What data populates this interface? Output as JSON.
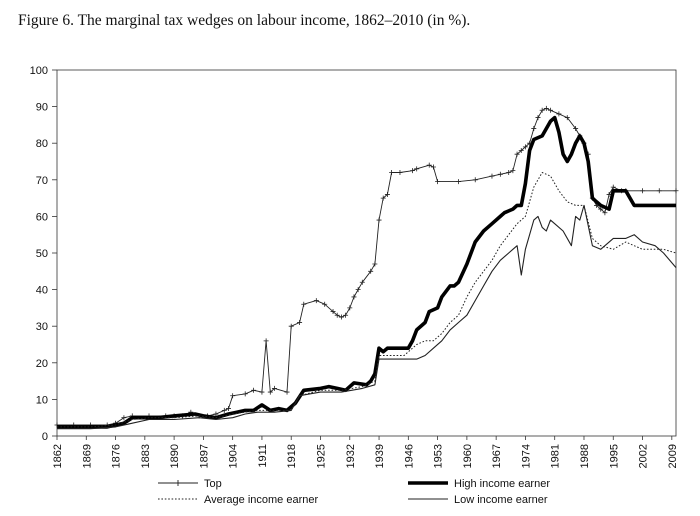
{
  "chart_data": {
    "type": "line",
    "title": "Figure 6.  The marginal tax wedges on labour income, 1862–2010 (in %).",
    "xlabel": "",
    "ylabel": "",
    "xlim": [
      1862,
      2010
    ],
    "ylim": [
      0,
      100
    ],
    "y_ticks": [
      0,
      10,
      20,
      30,
      40,
      50,
      60,
      70,
      80,
      90,
      100
    ],
    "x_ticks": [
      1862,
      1869,
      1876,
      1883,
      1890,
      1897,
      1904,
      1911,
      1918,
      1925,
      1932,
      1939,
      1946,
      1953,
      1960,
      1967,
      1974,
      1981,
      1988,
      1995,
      2002,
      2009
    ],
    "grid": false,
    "legend_position": "bottom",
    "series": [
      {
        "name": "Top",
        "style": "thin line with plus markers",
        "color": "#222222",
        "x": [
          1862,
          1866,
          1870,
          1874,
          1876,
          1878,
          1880,
          1884,
          1888,
          1890,
          1892,
          1894,
          1896,
          1898,
          1900,
          1902,
          1903,
          1904,
          1907,
          1909,
          1911,
          1912,
          1913,
          1914,
          1917,
          1918,
          1920,
          1921,
          1924,
          1926,
          1928,
          1929,
          1930,
          1931,
          1932,
          1933,
          1934,
          1935,
          1937,
          1938,
          1939,
          1940,
          1941,
          1942,
          1944,
          1947,
          1948,
          1951,
          1952,
          1953,
          1958,
          1962,
          1966,
          1968,
          1970,
          1971,
          1972,
          1973,
          1974,
          1975,
          1976,
          1977,
          1978,
          1979,
          1980,
          1982,
          1984,
          1986,
          1987,
          1988,
          1989,
          1990,
          1991,
          1992,
          1993,
          1994,
          1995,
          1997,
          1998,
          2002,
          2006,
          2010
        ],
        "values": [
          3,
          3,
          3,
          3,
          3.5,
          5,
          5.5,
          5.5,
          5.5,
          5.5,
          5.5,
          6.5,
          5.5,
          5.5,
          6,
          7,
          7.5,
          11,
          11.5,
          12.5,
          12,
          26,
          12,
          13,
          12,
          30,
          31,
          36,
          37,
          36,
          34,
          33,
          32.5,
          33,
          35,
          38,
          40,
          42,
          45,
          47,
          59,
          65,
          66,
          72,
          72,
          72.5,
          73,
          74,
          73.5,
          69.5,
          69.5,
          70,
          71,
          71.5,
          72,
          72.5,
          77,
          78,
          79,
          80,
          84,
          87,
          89,
          89.5,
          89,
          88,
          87,
          84,
          82,
          80,
          77,
          65,
          63,
          62,
          61,
          66,
          68,
          67,
          67,
          67,
          67,
          67
        ]
      },
      {
        "name": "High income earner",
        "style": "thick line",
        "color": "#000000",
        "x": [
          1862,
          1870,
          1874,
          1878,
          1880,
          1886,
          1890,
          1895,
          1897,
          1900,
          1903,
          1905,
          1907,
          1909,
          1911,
          1913,
          1915,
          1917,
          1919,
          1921,
          1925,
          1927,
          1929,
          1931,
          1933,
          1936,
          1937,
          1938,
          1939,
          1940,
          1941,
          1943,
          1946,
          1947,
          1948,
          1950,
          1951,
          1953,
          1954,
          1956,
          1957,
          1958,
          1960,
          1962,
          1964,
          1966,
          1968,
          1969,
          1971,
          1972,
          1973,
          1974,
          1975,
          1976,
          1978,
          1980,
          1981,
          1982,
          1983,
          1984,
          1985,
          1986,
          1987,
          1988,
          1989,
          1990,
          1991,
          1992,
          1994,
          1995,
          1996,
          1998,
          2000,
          2002,
          2003,
          2006,
          2008,
          2010
        ],
        "values": [
          2.5,
          2.5,
          2.5,
          3.5,
          5,
          5,
          5.5,
          6,
          5.5,
          5,
          6,
          6.5,
          7,
          7,
          8.5,
          7,
          7.5,
          7,
          9,
          12.5,
          13,
          13.5,
          13,
          12.5,
          14.5,
          14,
          15,
          17,
          24,
          23,
          24,
          24,
          24,
          26,
          29,
          31,
          34,
          35,
          38,
          41,
          41,
          42,
          47,
          53,
          56,
          58,
          60,
          61,
          62,
          63,
          63,
          69,
          78,
          81,
          82,
          86,
          87,
          83,
          77,
          75,
          77,
          80,
          82,
          80,
          75,
          65,
          64,
          63,
          62,
          67,
          67,
          67,
          63,
          63,
          63,
          63,
          63,
          63
        ]
      },
      {
        "name": "Average income earner",
        "style": "dotted line",
        "color": "#222222",
        "x": [
          1862,
          1870,
          1876,
          1880,
          1884,
          1890,
          1896,
          1900,
          1904,
          1907,
          1910,
          1914,
          1918,
          1920,
          1925,
          1930,
          1935,
          1938,
          1939,
          1940,
          1942,
          1945,
          1948,
          1950,
          1952,
          1954,
          1956,
          1958,
          1960,
          1962,
          1964,
          1966,
          1968,
          1970,
          1972,
          1974,
          1976,
          1978,
          1980,
          1982,
          1984,
          1986,
          1988,
          1990,
          1992,
          1995,
          1998,
          2000,
          2002,
          2005,
          2007,
          2010
        ],
        "values": [
          2.5,
          2.5,
          3,
          4.5,
          5,
          5,
          5.5,
          5,
          6,
          6.5,
          7,
          7,
          7,
          11,
          12.5,
          12.5,
          13.5,
          15,
          22,
          22,
          22,
          22,
          25,
          26,
          26,
          28,
          31,
          33,
          38,
          42,
          45,
          48,
          52,
          55,
          58,
          60,
          68,
          72,
          71,
          67,
          64,
          63,
          63,
          54,
          52,
          51,
          53,
          52,
          51,
          51,
          51,
          50
        ]
      },
      {
        "name": "Low income earner",
        "style": "thin line",
        "color": "#222222",
        "x": [
          1862,
          1870,
          1876,
          1880,
          1884,
          1890,
          1896,
          1900,
          1904,
          1907,
          1910,
          1914,
          1918,
          1920,
          1925,
          1930,
          1935,
          1938,
          1939,
          1940,
          1942,
          1944,
          1946,
          1948,
          1950,
          1952,
          1954,
          1956,
          1958,
          1960,
          1962,
          1964,
          1966,
          1968,
          1970,
          1971,
          1972,
          1973,
          1974,
          1976,
          1977,
          1978,
          1979,
          1980,
          1981,
          1983,
          1985,
          1986,
          1987,
          1988,
          1990,
          1992,
          1995,
          1998,
          2000,
          2002,
          2005,
          2007,
          2010
        ],
        "values": [
          2,
          2,
          2.5,
          3.5,
          4.5,
          4.5,
          5,
          4.5,
          5,
          6,
          6.5,
          6.5,
          7,
          11,
          12,
          12,
          13,
          14,
          21,
          21,
          21,
          21,
          21,
          21,
          22,
          24,
          26,
          29,
          31,
          33,
          37,
          41,
          45,
          48,
          50,
          51,
          52,
          44,
          51,
          59,
          60,
          57,
          56,
          59,
          58,
          56,
          52,
          60,
          59,
          63,
          52,
          51,
          54,
          54,
          55,
          53,
          52,
          50,
          46
        ]
      }
    ]
  }
}
